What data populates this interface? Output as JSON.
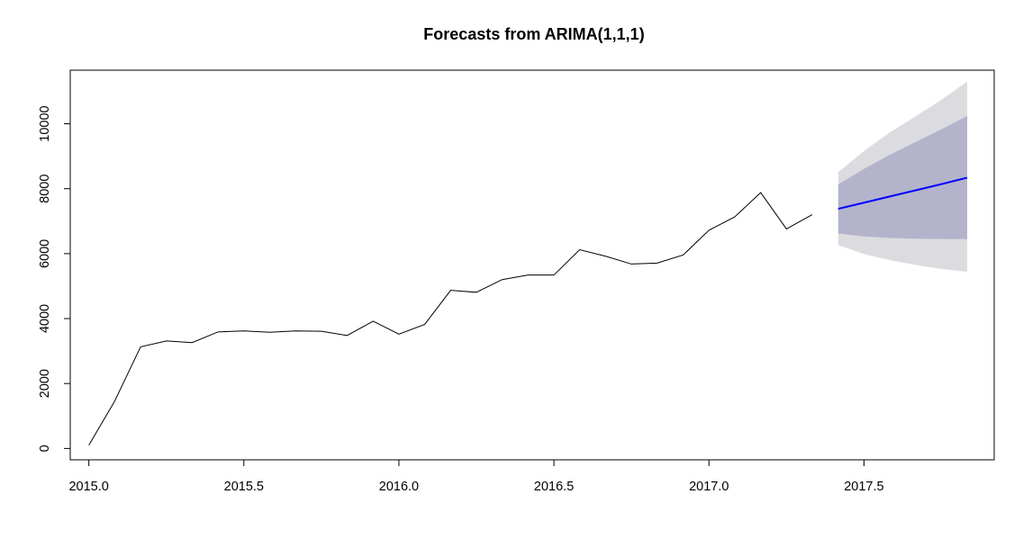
{
  "chart_data": {
    "type": "line",
    "title": "Forecasts from ARIMA(1,1,1)",
    "xlabel": "",
    "ylabel": "",
    "xlim": [
      2014.94,
      2017.92
    ],
    "ylim": [
      -350,
      11650
    ],
    "x_ticks": [
      2015.0,
      2015.5,
      2016.0,
      2016.5,
      2017.0,
      2017.5
    ],
    "x_tick_labels": [
      "2015.0",
      "2015.5",
      "2016.0",
      "2016.5",
      "2017.0",
      "2017.5"
    ],
    "y_ticks": [
      0,
      2000,
      4000,
      6000,
      8000,
      10000
    ],
    "y_tick_labels": [
      "0",
      "2000",
      "4000",
      "6000",
      "8000",
      "10000"
    ],
    "grid": false,
    "colors": {
      "observed": "#000000",
      "forecast": "#0000ff",
      "band_80": "#b3b3cc",
      "band_95": "#dcdbdf",
      "axis": "#000000"
    },
    "observed": {
      "x": [
        2015.0,
        2015.083,
        2015.167,
        2015.25,
        2015.333,
        2015.417,
        2015.5,
        2015.583,
        2015.667,
        2015.75,
        2015.833,
        2015.917,
        2016.0,
        2016.083,
        2016.167,
        2016.25,
        2016.333,
        2016.417,
        2016.5,
        2016.583,
        2016.667,
        2016.75,
        2016.833,
        2016.917,
        2017.0,
        2017.083,
        2017.167,
        2017.25,
        2017.333
      ],
      "y": [
        100,
        1450,
        3130,
        3310,
        3260,
        3590,
        3620,
        3580,
        3620,
        3610,
        3480,
        3920,
        3520,
        3820,
        4870,
        4810,
        5200,
        5340,
        5340,
        6120,
        5920,
        5680,
        5710,
        5960,
        6720,
        7130,
        7880,
        6760,
        7200
      ]
    },
    "forecast": {
      "x": [
        2017.417,
        2017.5,
        2017.583,
        2017.667,
        2017.75,
        2017.833
      ],
      "mean": [
        7380,
        7570,
        7760,
        7950,
        8140,
        8340
      ],
      "lo80": [
        6620,
        6530,
        6480,
        6460,
        6450,
        6450
      ],
      "hi80": [
        8130,
        8610,
        9040,
        9440,
        9830,
        10240
      ],
      "lo95": [
        6260,
        5990,
        5800,
        5650,
        5530,
        5440
      ],
      "hi95": [
        8510,
        9160,
        9730,
        10230,
        10740,
        11300
      ]
    }
  }
}
